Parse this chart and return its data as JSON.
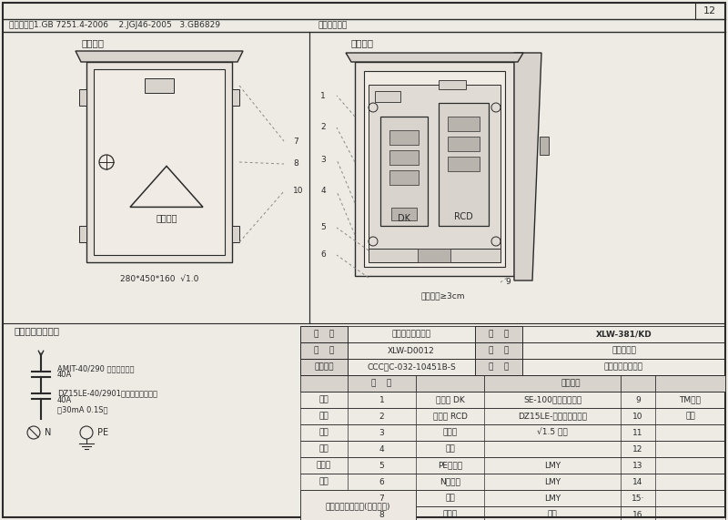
{
  "page_number": "12",
  "header_standards": "执行标准：1.GB 7251.4-2006    2.JGJ46-2005   3.GB6829",
  "header_color": "壳体颜色：黄",
  "left_title": "外型图：",
  "right_title": "装配图：",
  "dim_label": "280*450*160  √1.0",
  "component_spacing": "元件间距≥3cm",
  "schematic_title": "电器连接原理图：",
  "schematic_lines": [
    "AMIT-40/290 （透明空开）",
    "40A",
    "DZ15LE-40/2901（透明漏电开关）",
    "40A",
    "（30mA 0.1S）"
  ],
  "footer_company": "哈尔滨市龙瑞电气(成套设备)",
  "table_info": [
    [
      "名    称",
      "建筑施工用配电箱",
      "型    号",
      "XLW-381/KD"
    ],
    [
      "图    号",
      "XLW-D0012",
      "规    格",
      "照明开关箱"
    ],
    [
      "试验报告",
      "CCC：C-032-10451B-S",
      "用    途",
      "施工现场照明配电"
    ]
  ],
  "table_data": [
    [
      "设计",
      "1",
      "断路器 DK",
      "SE-100系列透明开关",
      "9",
      "TM连接"
    ],
    [
      "制图",
      "2",
      "断路器 RCD",
      "DZ15LE-透明系列漏电开",
      "10",
      "排耳"
    ],
    [
      "校核",
      "3",
      "安装板",
      "√1.5 折边",
      "11",
      ""
    ],
    [
      "审核",
      "4",
      "线夹",
      "",
      "12",
      ""
    ],
    [
      "标准化",
      "5",
      "PE线端子",
      "LMY",
      "13",
      ""
    ],
    [
      "日期",
      "6",
      "N线端子",
      "LMY",
      "14",
      ""
    ],
    [
      "",
      "7",
      "标牌",
      "LMY",
      "15·",
      ""
    ],
    [
      "",
      "8",
      "压把锁",
      "防雨",
      "16",
      ""
    ]
  ],
  "bg_color": "#eeebe5",
  "line_color": "#2a2a2a",
  "box_fill": "#e8e4dd",
  "panel_fill": "#d8d4cd",
  "dark_fill": "#b8b4ad"
}
